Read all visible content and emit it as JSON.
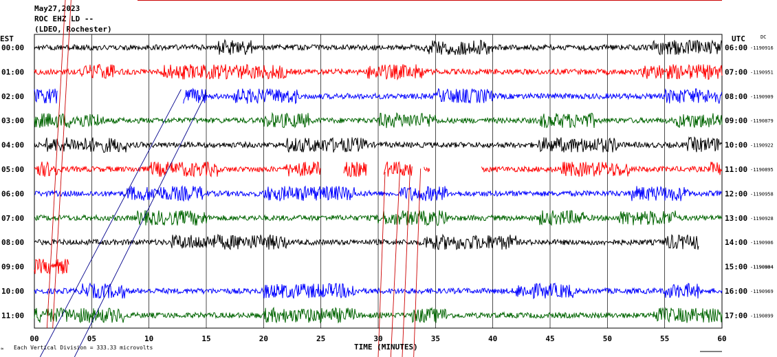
{
  "header": {
    "date": "May27,2023",
    "station": "ROC EHZ LD --",
    "network": "(LDEO, Rochester)"
  },
  "labels": {
    "left_zone": "EST",
    "right_zone": "UTC",
    "dc": "DC",
    "x_title": "TIME (MINUTES)",
    "scale_note": "Each Vertical Division =  333.33 microvolts"
  },
  "colors": {
    "trace_cycle": [
      "#000000",
      "#ff0000",
      "#0000ff",
      "#006400"
    ],
    "grid": "#000000",
    "event_marks": "#cc0000",
    "slant_marks": "#00008b"
  },
  "chart_data": {
    "type": "line",
    "title": "",
    "xlabel": "TIME (MINUTES)",
    "ylabel": "",
    "xlim": [
      0,
      60
    ],
    "x_ticks": [
      "00",
      "05",
      "10",
      "15",
      "20",
      "25",
      "30",
      "35",
      "40",
      "45",
      "50",
      "55",
      "60"
    ],
    "grid": true,
    "rows": [
      {
        "est": "00:00",
        "utc": "06:00",
        "dc": "-1190916",
        "color": "#000000",
        "segments": [
          [
            0,
            60
          ]
        ],
        "bursts": [
          [
            16,
            19
          ],
          [
            34,
            40
          ],
          [
            54,
            60
          ]
        ]
      },
      {
        "est": "01:00",
        "utc": "07:00",
        "dc": "-1190951",
        "color": "#ff0000",
        "segments": [
          [
            0,
            60
          ]
        ],
        "bursts": [
          [
            4,
            7
          ],
          [
            11,
            16
          ],
          [
            16,
            22
          ],
          [
            29,
            34
          ],
          [
            53,
            60
          ]
        ]
      },
      {
        "est": "02:00",
        "utc": "08:00",
        "dc": "-1190909",
        "color": "#0000ff",
        "segments": [
          [
            0,
            2
          ],
          [
            13,
            60
          ]
        ],
        "bursts": [
          [
            0,
            2
          ],
          [
            13,
            15
          ],
          [
            17,
            23
          ],
          [
            35,
            40
          ],
          [
            55,
            60
          ]
        ]
      },
      {
        "est": "03:00",
        "utc": "09:00",
        "dc": "-1190879",
        "color": "#006400",
        "segments": [
          [
            0,
            60
          ]
        ],
        "bursts": [
          [
            0,
            6
          ],
          [
            20,
            24
          ],
          [
            30,
            35
          ],
          [
            44,
            49
          ],
          [
            56,
            60
          ]
        ]
      },
      {
        "est": "04:00",
        "utc": "10:00",
        "dc": "-1190922",
        "color": "#000000",
        "segments": [
          [
            0,
            60
          ]
        ],
        "bursts": [
          [
            1,
            8
          ],
          [
            22,
            29
          ],
          [
            44,
            51
          ],
          [
            57,
            60
          ]
        ]
      },
      {
        "est": "05:00",
        "utc": "11:00",
        "dc": "-1190895",
        "color": "#ff0000",
        "segments": [
          [
            0,
            25
          ],
          [
            27,
            29
          ],
          [
            30.5,
            33
          ],
          [
            34,
            34.5
          ],
          [
            39,
            60
          ]
        ],
        "bursts": [
          [
            0,
            2
          ],
          [
            10,
            16
          ],
          [
            22,
            25
          ],
          [
            27,
            29
          ],
          [
            30.5,
            33
          ],
          [
            46,
            52
          ],
          [
            59,
            60
          ]
        ]
      },
      {
        "est": "06:00",
        "utc": "12:00",
        "dc": "-1190958",
        "color": "#0000ff",
        "segments": [
          [
            0,
            60
          ]
        ],
        "bursts": [
          [
            8,
            15
          ],
          [
            20,
            28
          ],
          [
            32,
            36
          ],
          [
            52,
            57
          ]
        ]
      },
      {
        "est": "07:00",
        "utc": "13:00",
        "dc": "-1190928",
        "color": "#006400",
        "segments": [
          [
            0,
            60
          ]
        ],
        "bursts": [
          [
            9,
            15
          ],
          [
            30,
            36
          ],
          [
            44,
            48
          ],
          [
            51,
            56
          ]
        ]
      },
      {
        "est": "08:00",
        "utc": "14:00",
        "dc": "-1190906",
        "color": "#000000",
        "segments": [
          [
            0,
            58
          ]
        ],
        "bursts": [
          [
            12,
            22
          ],
          [
            34,
            42
          ],
          [
            55,
            58
          ]
        ]
      },
      {
        "est": "09:00",
        "utc": "15:00",
        "dc": "-1190904",
        "dc2": "-1190884",
        "color": "#ff0000",
        "segments": [
          [
            0,
            3
          ]
        ],
        "bursts": [
          [
            0,
            3
          ]
        ]
      },
      {
        "est": "10:00",
        "utc": "16:00",
        "dc": "-1190969",
        "color": "#0000ff",
        "segments": [
          [
            0,
            60
          ]
        ],
        "bursts": [
          [
            4,
            8
          ],
          [
            20,
            28
          ],
          [
            42,
            47
          ],
          [
            55,
            58
          ]
        ]
      },
      {
        "est": "11:00",
        "utc": "17:00",
        "dc": "-1190899",
        "color": "#006400",
        "segments": [
          [
            0,
            60
          ]
        ],
        "bursts": [
          [
            0,
            8
          ],
          [
            20,
            28
          ],
          [
            33,
            36
          ],
          [
            54,
            60
          ]
        ]
      }
    ]
  }
}
